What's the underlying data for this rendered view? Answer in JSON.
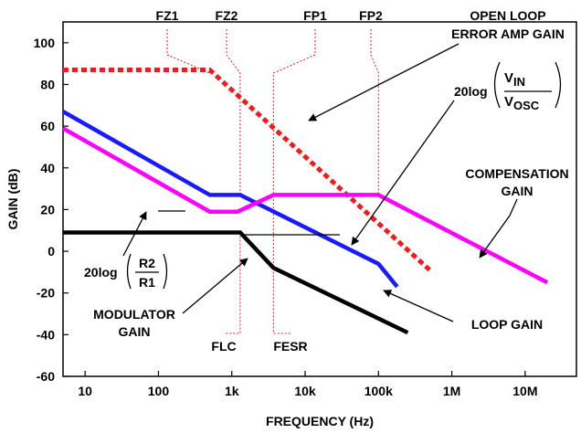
{
  "chart_data": {
    "type": "line",
    "xlabel": "FREQUENCY (Hz)",
    "ylabel": "GAIN (dB)",
    "x_scale": "log",
    "xlim": [
      5,
      50000000
    ],
    "ylim": [
      -60,
      110
    ],
    "grid": false,
    "x_ticks": [
      {
        "value": 10,
        "label": "10"
      },
      {
        "value": 100,
        "label": "100"
      },
      {
        "value": 1000,
        "label": "1k"
      },
      {
        "value": 10000,
        "label": "10k"
      },
      {
        "value": 100000,
        "label": "100k"
      },
      {
        "value": 1000000,
        "label": "1M"
      },
      {
        "value": 10000000,
        "label": "10M"
      }
    ],
    "y_ticks": [
      {
        "value": 100,
        "label": "100"
      },
      {
        "value": 80,
        "label": "80"
      },
      {
        "value": 60,
        "label": "60"
      },
      {
        "value": 40,
        "label": "40"
      },
      {
        "value": 20,
        "label": "20"
      },
      {
        "value": 0,
        "label": "0"
      },
      {
        "value": -20,
        "label": "-20"
      },
      {
        "value": -40,
        "label": "-40"
      },
      {
        "value": -60,
        "label": "-60"
      }
    ],
    "series": [
      {
        "key": "open_loop",
        "color": "#ee1c1c",
        "style": "dotted",
        "points": [
          [
            5,
            87
          ],
          [
            500,
            87
          ],
          [
            500000,
            -9
          ]
        ]
      },
      {
        "key": "loop_gain",
        "color": "#1a1aff",
        "style": "solid",
        "points": [
          [
            5,
            67
          ],
          [
            500,
            27
          ],
          [
            1300,
            27
          ],
          [
            100000,
            -6
          ],
          [
            180000,
            -17
          ]
        ]
      },
      {
        "key": "compensation",
        "color": "#ff00ff",
        "style": "solid",
        "points": [
          [
            5,
            59
          ],
          [
            500,
            19
          ],
          [
            1200,
            19
          ],
          [
            3700,
            27
          ],
          [
            100000,
            27
          ],
          [
            20000000,
            -15
          ]
        ]
      },
      {
        "key": "modulator",
        "color": "#000000",
        "style": "solid",
        "points": [
          [
            5,
            9
          ],
          [
            1300,
            9
          ],
          [
            3700,
            -8
          ],
          [
            250000,
            -39
          ]
        ]
      }
    ],
    "freq_markers": [
      {
        "label": "FZ1",
        "x": 500,
        "y_bottom": 87
      },
      {
        "label": "FZ2",
        "x": 1300,
        "y_bottom": 27
      },
      {
        "label": "FP1",
        "x": 3700,
        "y_bottom": -8
      },
      {
        "label": "FP2",
        "x": 100000,
        "y_bottom": 27
      },
      {
        "label": "FLC",
        "x": 1300,
        "y_bottom": -60
      },
      {
        "label": "FESR",
        "x": 3700,
        "y_bottom": -60
      }
    ],
    "annotations": {
      "open_loop": [
        "OPEN LOOP",
        "ERROR AMP GAIN"
      ],
      "compensation": [
        "COMPENSATION",
        "GAIN"
      ],
      "modulator": [
        "MODULATOR",
        "GAIN"
      ],
      "loop_gain": "LOOP GAIN",
      "vin_vosc": {
        "prefix": "20log",
        "num": "V",
        "num_sub": "IN",
        "den": "V",
        "den_sub": "OSC"
      },
      "r2_r1": {
        "prefix": "20log",
        "num": "R2",
        "den": "R1"
      }
    }
  }
}
